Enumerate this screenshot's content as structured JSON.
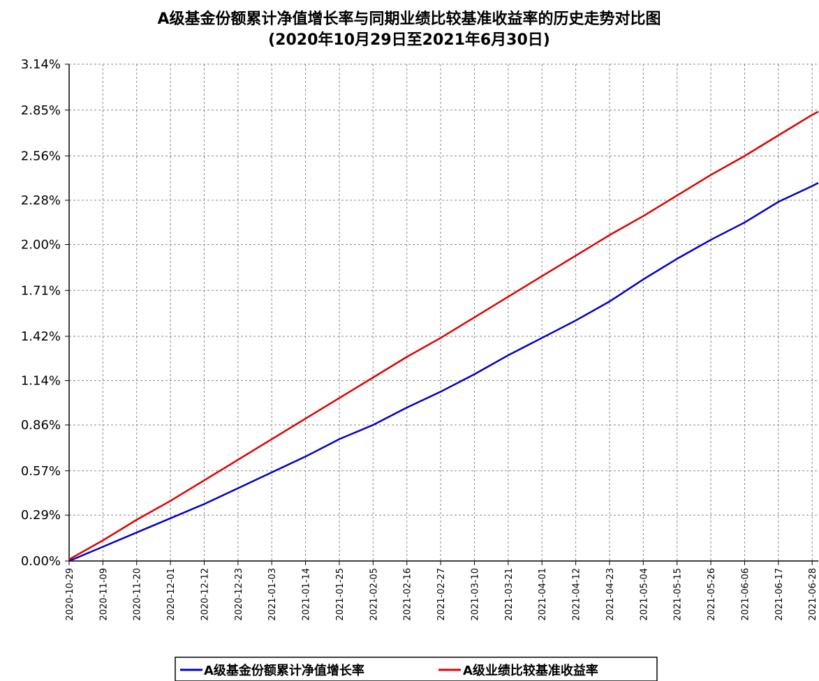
{
  "chart_data": {
    "type": "line",
    "title": "A级基金份额累计净值增长率与同期业绩比较基准收益率的历史走势对比图",
    "subtitle": "(2020年10月29日至2021年6月30日)",
    "xlabel": "",
    "ylabel": "",
    "ylim": [
      0.0,
      3.14
    ],
    "xlim": [
      "2020-10-29",
      "2021-06-30"
    ],
    "y_ticks": [
      "0.00%",
      "0.29%",
      "0.57%",
      "0.86%",
      "1.14%",
      "1.42%",
      "1.71%",
      "2.00%",
      "2.28%",
      "2.56%",
      "2.85%",
      "3.14%"
    ],
    "y_tick_values": [
      0.0,
      0.29,
      0.57,
      0.86,
      1.14,
      1.42,
      1.71,
      2.0,
      2.28,
      2.56,
      2.85,
      3.14
    ],
    "x_ticks": [
      "2020-10-29",
      "2020-11-09",
      "2020-11-20",
      "2020-12-01",
      "2020-12-12",
      "2020-12-23",
      "2021-01-03",
      "2021-01-14",
      "2021-01-25",
      "2021-02-05",
      "2021-02-16",
      "2021-02-27",
      "2021-03-10",
      "2021-03-21",
      "2021-04-01",
      "2021-04-12",
      "2021-04-23",
      "2021-05-04",
      "2021-05-15",
      "2021-05-26",
      "2021-06-06",
      "2021-06-17",
      "2021-06-28"
    ],
    "grid": true,
    "legend_position": "bottom",
    "series": [
      {
        "name": "A级基金份额累计净值增长率",
        "color": "#0000cc",
        "x": [
          "2020-10-29",
          "2020-11-09",
          "2020-11-20",
          "2020-12-01",
          "2020-12-12",
          "2020-12-23",
          "2021-01-03",
          "2021-01-14",
          "2021-01-25",
          "2021-02-05",
          "2021-02-16",
          "2021-02-27",
          "2021-03-10",
          "2021-03-21",
          "2021-04-01",
          "2021-04-12",
          "2021-04-23",
          "2021-05-04",
          "2021-05-15",
          "2021-05-26",
          "2021-06-06",
          "2021-06-17",
          "2021-06-28",
          "2021-06-30"
        ],
        "values": [
          0.0,
          0.09,
          0.18,
          0.27,
          0.36,
          0.46,
          0.56,
          0.66,
          0.77,
          0.86,
          0.97,
          1.07,
          1.18,
          1.3,
          1.41,
          1.52,
          1.64,
          1.78,
          1.91,
          2.03,
          2.14,
          2.27,
          2.37,
          2.39
        ]
      },
      {
        "name": "A级业绩比较基准收益率",
        "color": "#e00000",
        "x": [
          "2020-10-29",
          "2020-11-09",
          "2020-11-20",
          "2020-12-01",
          "2020-12-12",
          "2020-12-23",
          "2021-01-03",
          "2021-01-14",
          "2021-01-25",
          "2021-02-05",
          "2021-02-16",
          "2021-02-27",
          "2021-03-10",
          "2021-03-21",
          "2021-04-01",
          "2021-04-12",
          "2021-04-23",
          "2021-05-04",
          "2021-05-15",
          "2021-05-26",
          "2021-06-06",
          "2021-06-17",
          "2021-06-28",
          "2021-06-30"
        ],
        "values": [
          0.01,
          0.13,
          0.26,
          0.38,
          0.51,
          0.64,
          0.77,
          0.9,
          1.03,
          1.16,
          1.29,
          1.41,
          1.54,
          1.67,
          1.8,
          1.93,
          2.06,
          2.18,
          2.31,
          2.44,
          2.56,
          2.69,
          2.82,
          2.84
        ]
      }
    ]
  }
}
